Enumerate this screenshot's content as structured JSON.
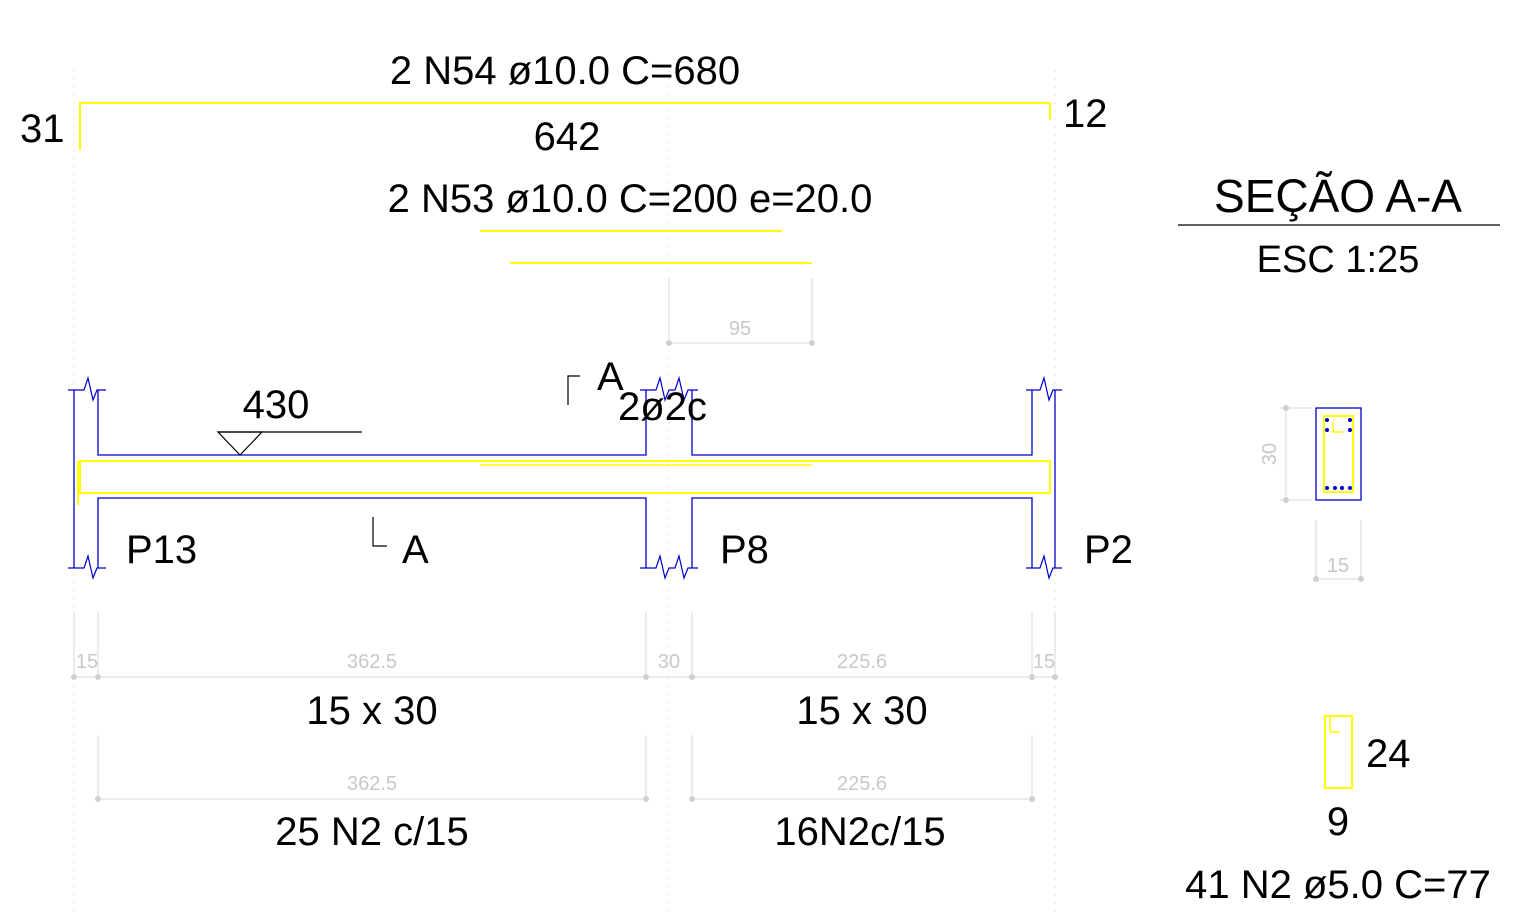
{
  "top_bar": {
    "label": "2 N54 ø10.0 C=680",
    "left_hook": "31",
    "right_hook": "12",
    "length": "642"
  },
  "neg_bar": {
    "label": "2 N53 ø10.0 C=200 e=20.0",
    "dim": "95"
  },
  "section_title": {
    "title": "SEÇÃO A-A",
    "scale": "ESC 1:25"
  },
  "beam": {
    "level": "430",
    "cut_top": "A",
    "cut_bottom": "A",
    "stirrup_note": "2ø2c",
    "pillars": [
      "P13",
      "P8",
      "P2"
    ]
  },
  "dims_row1": {
    "d1": "15",
    "d2": "362.5",
    "d3": "30",
    "d4": "225.6",
    "d5": "15"
  },
  "sizes": {
    "span1": "15 x 30",
    "span2": "15 x 30"
  },
  "dims_row2": {
    "d1": "362.5",
    "d2": "225.6"
  },
  "stirrups": {
    "span1": "25 N2 c/15",
    "span2": "16N2c/15"
  },
  "cross_section": {
    "height": "30",
    "width": "15"
  },
  "stirrup_detail": {
    "height": "24",
    "width": "9",
    "label": "41 N2 ø5.0 C=77"
  },
  "colors": {
    "rebar": "#ffff00",
    "concrete_outline": "#0000cc",
    "dimension": "#c8c8c8",
    "text": "#000000"
  }
}
